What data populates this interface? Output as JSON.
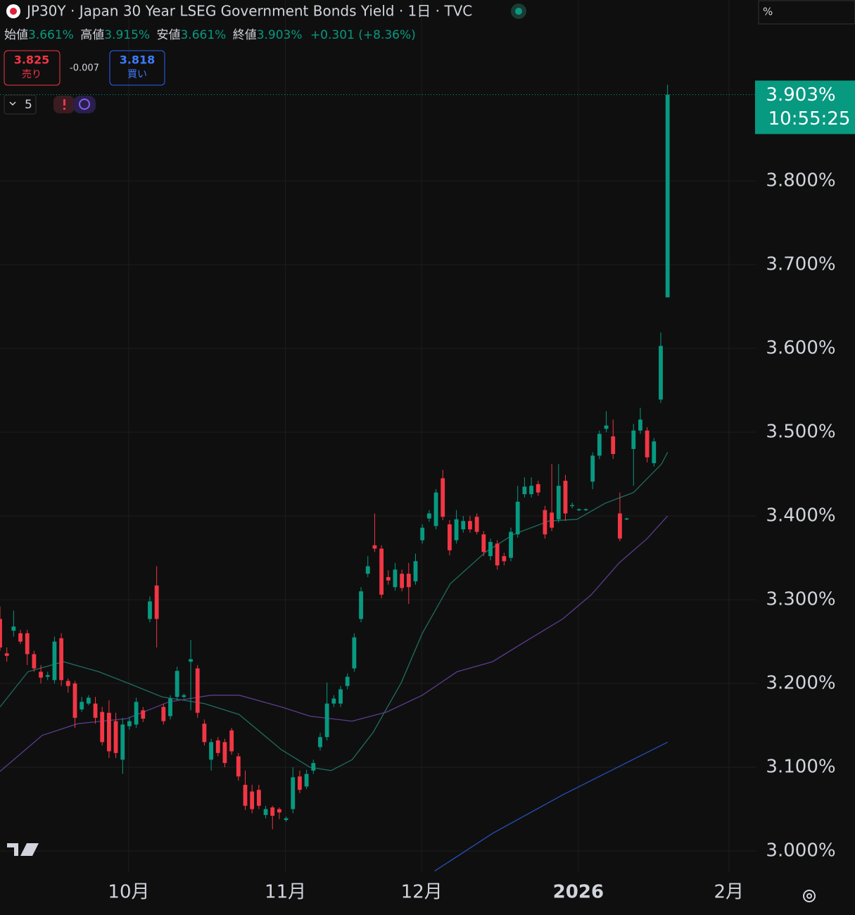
{
  "ui": {
    "title": "JP30Y · Japan 30 Year LSEG Government Bonds Yield · 1日 · TVC",
    "ohlc_legend": [
      {
        "label": "始値",
        "value": "3.661%"
      },
      {
        "label": "高値",
        "value": "3.915%"
      },
      {
        "label": "安値",
        "value": "3.661%"
      },
      {
        "label": "終値",
        "value": "3.903%"
      }
    ],
    "change": "+0.301 (+8.36%)",
    "sell": {
      "price": "3.825",
      "label": "売り"
    },
    "spread": "-0.007",
    "buy": {
      "price": "3.818",
      "label": "買い"
    },
    "indicator_count": "5",
    "scale_unit": "%"
  },
  "chart_data": {
    "type": "candlestick",
    "up_color": "#089981",
    "down_color": "#f23645",
    "xlim": [
      0,
      111.05
    ],
    "ylim": [
      2.974,
      4.016
    ],
    "grid": true,
    "yticks": [
      {
        "value": 3.0,
        "label": "3.000%"
      },
      {
        "value": 3.1,
        "label": "3.100%"
      },
      {
        "value": 3.2,
        "label": "3.200%"
      },
      {
        "value": 3.3,
        "label": "3.300%"
      },
      {
        "value": 3.4,
        "label": "3.400%"
      },
      {
        "value": 3.5,
        "label": "3.500%"
      },
      {
        "value": 3.6,
        "label": "3.600%"
      },
      {
        "value": 3.7,
        "label": "3.700%"
      },
      {
        "value": 3.8,
        "label": "3.800%"
      }
    ],
    "xticks": [
      {
        "value": 18.9,
        "label": "10月"
      },
      {
        "value": 41.9,
        "label": "11月"
      },
      {
        "value": 61.9,
        "label": "12月"
      },
      {
        "value": 84.9,
        "label": "2026"
      },
      {
        "value": 107.0,
        "label": "2月"
      }
    ],
    "last_price": {
      "value": 3.903,
      "label": "3.903%",
      "countdown": "10:55:25",
      "color": "#089981"
    },
    "open": [
      3.277,
      3.236,
      3.263,
      3.26,
      3.26,
      3.235,
      3.214,
      3.208,
      3.204,
      3.254,
      3.203,
      3.2,
      3.169,
      3.176,
      3.176,
      3.166,
      3.165,
      3.155,
      3.109,
      3.149,
      3.151,
      3.168,
      3.277,
      3.317,
      3.172,
      3.161,
      3.184,
      3.184,
      3.226,
      3.218,
      3.152,
      3.109,
      3.132,
      3.13,
      3.144,
      3.113,
      3.079,
      3.071,
      3.073,
      3.043,
      3.052,
      3.05,
      3.037,
      3.05,
      3.089,
      3.077,
      3.096,
      3.124,
      3.136,
      3.176,
      3.176,
      3.197,
      3.218,
      3.277,
      3.331,
      3.365,
      3.361,
      3.327,
      3.315,
      3.331,
      3.331,
      3.322,
      3.371,
      3.397,
      3.388,
      3.445,
      3.39,
      3.371,
      3.384,
      3.394,
      3.399,
      3.378,
      3.352,
      3.367,
      3.352,
      3.35,
      3.378,
      3.426,
      3.426,
      3.438,
      3.407,
      3.404,
      3.396,
      3.442,
      3.412,
      3.407,
      3.407,
      3.441,
      3.472,
      3.504,
      3.495,
      3.403,
      3.396,
      3.48,
      3.502,
      3.502,
      3.463,
      3.539,
      3.661
    ],
    "high": [
      3.292,
      3.243,
      3.287,
      3.264,
      3.264,
      3.239,
      3.222,
      3.214,
      3.256,
      3.26,
      3.206,
      3.203,
      3.184,
      3.186,
      3.184,
      3.172,
      3.18,
      3.165,
      3.159,
      3.16,
      3.183,
      3.172,
      3.304,
      3.34,
      3.176,
      3.186,
      3.22,
      3.188,
      3.252,
      3.222,
      3.157,
      3.134,
      3.136,
      3.134,
      3.147,
      3.117,
      3.096,
      3.079,
      3.079,
      3.054,
      3.054,
      3.052,
      3.041,
      3.1,
      3.096,
      3.097,
      3.109,
      3.141,
      3.201,
      3.186,
      3.197,
      3.212,
      3.26,
      3.315,
      3.352,
      3.403,
      3.365,
      3.335,
      3.344,
      3.336,
      3.344,
      3.355,
      3.39,
      3.407,
      3.432,
      3.455,
      3.395,
      3.407,
      3.4,
      3.4,
      3.403,
      3.382,
      3.373,
      3.371,
      3.356,
      3.386,
      3.436,
      3.446,
      3.446,
      3.442,
      3.412,
      3.462,
      3.462,
      3.449,
      3.416,
      3.409,
      3.409,
      3.476,
      3.502,
      3.525,
      3.515,
      3.428,
      3.398,
      3.51,
      3.529,
      3.506,
      3.493,
      3.619,
      3.915
    ],
    "low": [
      3.239,
      3.226,
      3.256,
      3.247,
      3.222,
      3.214,
      3.2,
      3.204,
      3.2,
      3.197,
      3.189,
      3.147,
      3.166,
      3.174,
      3.152,
      3.126,
      3.111,
      3.111,
      3.092,
      3.145,
      3.147,
      3.154,
      3.273,
      3.243,
      3.151,
      3.157,
      3.18,
      3.182,
      3.168,
      3.159,
      3.126,
      3.096,
      3.113,
      3.1,
      3.115,
      3.084,
      3.049,
      3.045,
      3.05,
      3.039,
      3.026,
      3.038,
      3.035,
      3.045,
      3.069,
      3.074,
      3.092,
      3.12,
      3.132,
      3.172,
      3.172,
      3.193,
      3.214,
      3.273,
      3.327,
      3.357,
      3.302,
      3.318,
      3.311,
      3.31,
      3.295,
      3.318,
      3.367,
      3.393,
      3.384,
      3.395,
      3.353,
      3.367,
      3.38,
      3.38,
      3.378,
      3.352,
      3.347,
      3.336,
      3.341,
      3.346,
      3.374,
      3.422,
      3.422,
      3.424,
      3.373,
      3.382,
      3.392,
      3.394,
      3.409,
      3.406,
      3.406,
      3.432,
      3.468,
      3.5,
      3.468,
      3.37,
      3.395,
      3.436,
      3.498,
      3.464,
      3.459,
      3.535,
      3.661
    ],
    "close": [
      3.243,
      3.233,
      3.268,
      3.25,
      3.235,
      3.218,
      3.207,
      3.21,
      3.25,
      3.204,
      3.197,
      3.159,
      3.178,
      3.183,
      3.159,
      3.13,
      3.119,
      3.117,
      3.151,
      3.155,
      3.178,
      3.158,
      3.298,
      3.277,
      3.155,
      3.182,
      3.215,
      3.186,
      3.229,
      3.165,
      3.13,
      3.13,
      3.117,
      3.105,
      3.119,
      3.089,
      3.054,
      3.05,
      3.054,
      3.05,
      3.042,
      3.046,
      3.039,
      3.088,
      3.073,
      3.092,
      3.105,
      3.136,
      3.176,
      3.182,
      3.193,
      3.208,
      3.255,
      3.31,
      3.34,
      3.361,
      3.306,
      3.323,
      3.336,
      3.314,
      3.315,
      3.346,
      3.386,
      3.403,
      3.428,
      3.399,
      3.359,
      3.396,
      3.394,
      3.384,
      3.381,
      3.357,
      3.369,
      3.341,
      3.346,
      3.381,
      3.417,
      3.435,
      3.436,
      3.428,
      3.378,
      3.386,
      3.436,
      3.403,
      3.413,
      3.408,
      3.408,
      3.472,
      3.498,
      3.508,
      3.474,
      3.373,
      3.397,
      3.502,
      3.515,
      3.47,
      3.489,
      3.603,
      3.903
    ],
    "moving_averages": [
      {
        "color": "#1e6e5e",
        "x": [
          0,
          4.1,
          9.3,
          14.5,
          18.6,
          23.8,
          30,
          35.1,
          41.3,
          45.5,
          48.6,
          51.7,
          54.8,
          58.9,
          62,
          66.1,
          71.3,
          75.4,
          80.6,
          84.7,
          88.8,
          93,
          97.1,
          98
        ],
        "values": [
          3.172,
          3.214,
          3.226,
          3.214,
          3.201,
          3.184,
          3.176,
          3.163,
          3.121,
          3.1,
          3.096,
          3.109,
          3.142,
          3.201,
          3.26,
          3.319,
          3.357,
          3.378,
          3.394,
          3.396,
          3.415,
          3.428,
          3.462,
          3.476
        ]
      },
      {
        "color": "#5b3d8f",
        "x": [
          0,
          6.2,
          11.4,
          18.6,
          24.8,
          31,
          35.1,
          41.3,
          45.5,
          51.7,
          56.8,
          62,
          67.1,
          72.3,
          77.5,
          82.6,
          86.8,
          90.9,
          95,
          98
        ],
        "values": [
          3.095,
          3.138,
          3.152,
          3.158,
          3.178,
          3.186,
          3.186,
          3.172,
          3.161,
          3.155,
          3.166,
          3.186,
          3.214,
          3.226,
          3.252,
          3.277,
          3.306,
          3.344,
          3.373,
          3.4
        ]
      },
      {
        "color": "#2450b8",
        "x": [
          63.8,
          72.3,
          82.6,
          91.9,
          98
        ],
        "values": [
          2.976,
          3.021,
          3.067,
          3.105,
          3.13
        ]
      }
    ]
  }
}
